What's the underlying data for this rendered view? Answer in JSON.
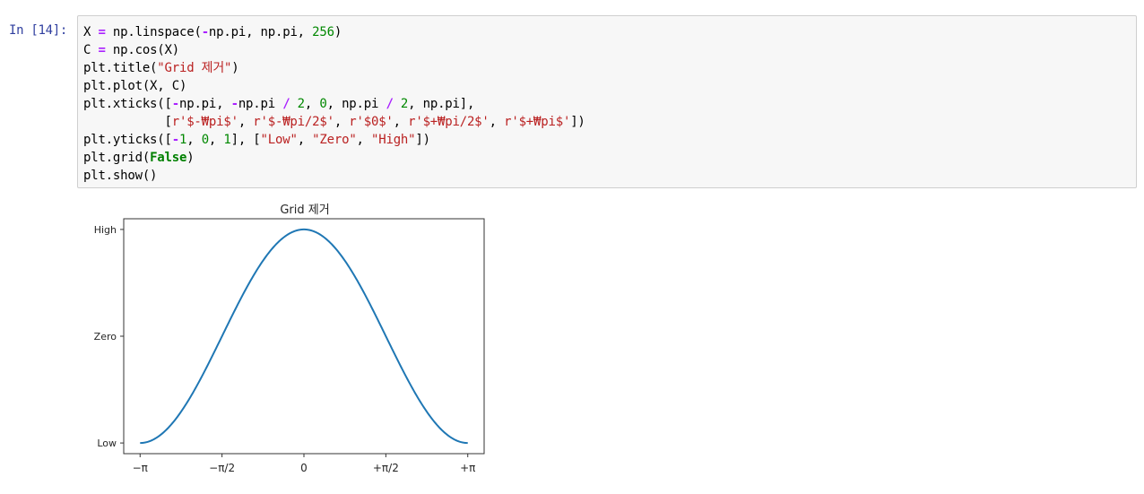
{
  "cell": {
    "prompt": "In [14]:",
    "lines": [
      [
        [
          "n",
          "X "
        ],
        [
          "o",
          "="
        ],
        [
          "n",
          " np.linspace("
        ],
        [
          "o",
          "-"
        ],
        [
          "n",
          "np.pi, np.pi, "
        ],
        [
          "num",
          "256"
        ],
        [
          "n",
          ")"
        ]
      ],
      [
        [
          "n",
          "C "
        ],
        [
          "o",
          "="
        ],
        [
          "n",
          " np.cos(X)"
        ]
      ],
      [
        [
          "n",
          "plt.title("
        ],
        [
          "s",
          "\"Grid 제거\""
        ],
        [
          "n",
          ")"
        ]
      ],
      [
        [
          "n",
          "plt.plot(X, C)"
        ]
      ],
      [
        [
          "n",
          "plt.xticks(["
        ],
        [
          "o",
          "-"
        ],
        [
          "n",
          "np.pi, "
        ],
        [
          "o",
          "-"
        ],
        [
          "n",
          "np.pi "
        ],
        [
          "o",
          "/"
        ],
        [
          "n",
          " "
        ],
        [
          "num",
          "2"
        ],
        [
          "n",
          ", "
        ],
        [
          "num",
          "0"
        ],
        [
          "n",
          ", np.pi "
        ],
        [
          "o",
          "/"
        ],
        [
          "n",
          " "
        ],
        [
          "num",
          "2"
        ],
        [
          "n",
          ", np.pi],"
        ]
      ],
      [
        [
          "n",
          "           ["
        ],
        [
          "s",
          "r'$-₩pi$'"
        ],
        [
          "n",
          ", "
        ],
        [
          "s",
          "r'$-₩pi/2$'"
        ],
        [
          "n",
          ", "
        ],
        [
          "s",
          "r'$0$'"
        ],
        [
          "n",
          ", "
        ],
        [
          "s",
          "r'$+₩pi/2$'"
        ],
        [
          "n",
          ", "
        ],
        [
          "s",
          "r'$+₩pi$'"
        ],
        [
          "n",
          "])"
        ]
      ],
      [
        [
          "n",
          "plt.yticks(["
        ],
        [
          "o",
          "-"
        ],
        [
          "num",
          "1"
        ],
        [
          "n",
          ", "
        ],
        [
          "num",
          "0"
        ],
        [
          "n",
          ", "
        ],
        [
          "num",
          "1"
        ],
        [
          "n",
          "], ["
        ],
        [
          "s",
          "\"Low\""
        ],
        [
          "n",
          ", "
        ],
        [
          "s",
          "\"Zero\""
        ],
        [
          "n",
          ", "
        ],
        [
          "s",
          "\"High\""
        ],
        [
          "n",
          "])"
        ]
      ],
      [
        [
          "n",
          "plt.grid("
        ],
        [
          "kw",
          "False"
        ],
        [
          "n",
          ")"
        ]
      ],
      [
        [
          "n",
          "plt.show()"
        ]
      ]
    ]
  },
  "chart_data": {
    "type": "line",
    "title": "Grid 제거",
    "xlabel": "",
    "ylabel": "",
    "function": "cos(x)",
    "x_range": [
      -3.14159,
      3.14159
    ],
    "num_points": 256,
    "xlim": [
      -3.4557,
      3.4557
    ],
    "ylim": [
      -1.1,
      1.1
    ],
    "xticks": [
      -3.14159,
      -1.5708,
      0,
      1.5708,
      3.14159
    ],
    "xtick_labels": [
      "−π",
      "−π/2",
      "0",
      "+π/2",
      "+π"
    ],
    "yticks": [
      -1,
      0,
      1
    ],
    "ytick_labels": [
      "Low",
      "Zero",
      "High"
    ],
    "grid": false,
    "line_color": "#1f77b4",
    "series": [
      {
        "values_fn": "cos"
      }
    ]
  }
}
